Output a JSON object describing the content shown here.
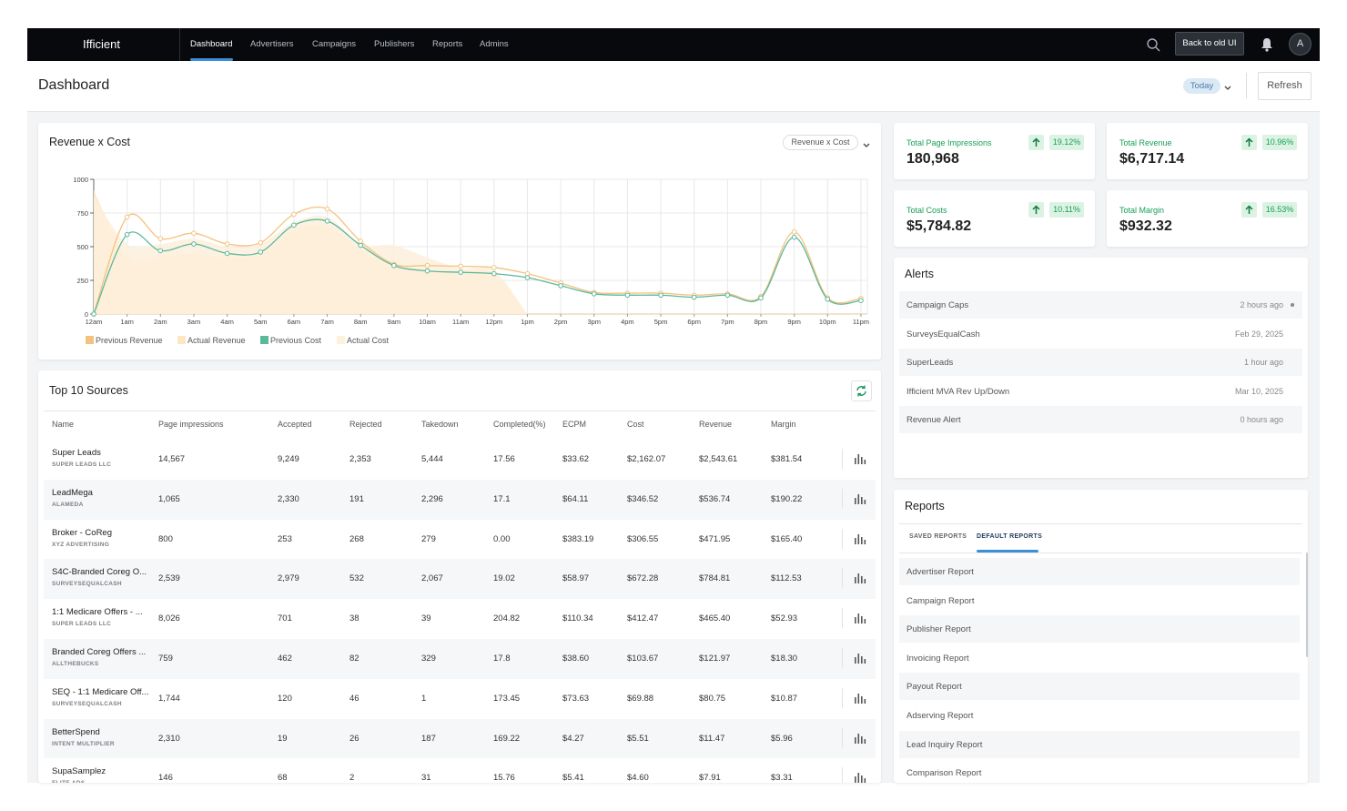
{
  "nav": {
    "brand": "Ifficient",
    "items": [
      "Dashboard",
      "Advertisers",
      "Campaigns",
      "Publishers",
      "Reports",
      "Admins"
    ],
    "back": "Back to old UI",
    "avatar": "A"
  },
  "header": {
    "title": "Dashboard",
    "range": "Today",
    "refresh": "Refresh"
  },
  "chart_data": {
    "type": "line",
    "title": "Revenue x Cost",
    "selector": "Revenue x Cost",
    "categories": [
      "12am",
      "1am",
      "2am",
      "3am",
      "4am",
      "5am",
      "6am",
      "7am",
      "8am",
      "9am",
      "10am",
      "11am",
      "12pm",
      "1pm",
      "2pm",
      "3pm",
      "4pm",
      "5pm",
      "6pm",
      "7pm",
      "8pm",
      "9pm",
      "10pm",
      "11pm"
    ],
    "ylim": [
      0,
      1000
    ],
    "yticks": [
      0,
      250,
      500,
      750,
      1000
    ],
    "grid": true,
    "series": [
      {
        "name": "Previous Revenue",
        "color": "#f5c27e",
        "style": "line",
        "values": [
          0,
          720,
          560,
          600,
          520,
          530,
          740,
          780,
          540,
          370,
          360,
          355,
          345,
          300,
          230,
          160,
          155,
          155,
          140,
          150,
          130,
          610,
          120,
          115
        ]
      },
      {
        "name": "Actual Revenue",
        "color": "#fde6c4",
        "style": "area",
        "values": [
          920,
          430,
          430,
          450,
          420,
          450,
          620,
          650,
          480,
          350,
          320,
          310,
          300,
          0,
          null,
          null,
          null,
          null,
          null,
          null,
          null,
          null,
          null,
          null
        ]
      },
      {
        "name": "Previous Cost",
        "color": "#5cb89a",
        "style": "line",
        "values": [
          0,
          590,
          470,
          520,
          450,
          460,
          660,
          690,
          510,
          360,
          320,
          310,
          300,
          270,
          210,
          150,
          140,
          140,
          125,
          140,
          120,
          570,
          110,
          100
        ]
      },
      {
        "name": "Actual Cost",
        "color": "#fdf0dc",
        "style": "area",
        "values": [
          880,
          520,
          520,
          560,
          500,
          520,
          680,
          720,
          520,
          510,
          420,
          340,
          320,
          0,
          null,
          null,
          null,
          null,
          null,
          null,
          null,
          null,
          null,
          null
        ]
      }
    ]
  },
  "stats": [
    {
      "label": "Total Page Impressions",
      "value": "180,968",
      "change": "19.12%"
    },
    {
      "label": "Total Revenue",
      "value": "$6,717.14",
      "change": "10.96%"
    },
    {
      "label": "Total Costs",
      "value": "$5,784.82",
      "change": "10.11%"
    },
    {
      "label": "Total Margin",
      "value": "$932.32",
      "change": "16.53%"
    }
  ],
  "alerts": {
    "title": "Alerts",
    "items": [
      {
        "name": "Campaign Caps",
        "time": "2 hours ago"
      },
      {
        "name": "SurveysEqualCash",
        "time": "Feb 29, 2025"
      },
      {
        "name": "SuperLeads",
        "time": "1 hour ago"
      },
      {
        "name": "Ifficient MVA Rev Up/Down",
        "time": "Mar 10, 2025"
      },
      {
        "name": "Revenue Alert",
        "time": "0 hours ago"
      }
    ]
  },
  "reports": {
    "title": "Reports",
    "tabs": [
      "SAVED REPORTS",
      "DEFAULT REPORTS"
    ],
    "items": [
      "Advertiser Report",
      "Campaign Report",
      "Publisher Report",
      "Invoicing Report",
      "Payout Report",
      "Adserving Report",
      "Lead Inquiry Report",
      "Comparison Report"
    ]
  },
  "sources": {
    "title": "Top 10 Sources",
    "columns": [
      "Name",
      "Page impressions",
      "Accepted",
      "Rejected",
      "Takedown",
      "Completed(%)",
      "ECPM",
      "Cost",
      "Revenue",
      "Margin"
    ],
    "rows": [
      {
        "name": "Super Leads",
        "company": "SUPER LEADS LLC",
        "cells": [
          "14,567",
          "9,249",
          "2,353",
          "5,444",
          "17.56",
          "$33.62",
          "$2,162.07",
          "$2,543.61",
          "$381.54"
        ]
      },
      {
        "name": "LeadMega",
        "company": "ALAMEDA",
        "cells": [
          "1,065",
          "2,330",
          "191",
          "2,296",
          "17.1",
          "$64.11",
          "$346.52",
          "$536.74",
          "$190.22"
        ]
      },
      {
        "name": "Broker - CoReg",
        "company": "XYZ ADVERTISING",
        "cells": [
          "800",
          "253",
          "268",
          "279",
          "0.00",
          "$383.19",
          "$306.55",
          "$471.95",
          "$165.40"
        ]
      },
      {
        "name": "S4C-Branded Coreg O...",
        "company": "SURVEYSEQUALCASH",
        "cells": [
          "2,539",
          "2,979",
          "532",
          "2,067",
          "19.02",
          "$58.97",
          "$672.28",
          "$784.81",
          "$112.53"
        ]
      },
      {
        "name": "1:1 Medicare Offers - ...",
        "company": "SUPER LEADS LLC",
        "cells": [
          "8,026",
          "701",
          "38",
          "39",
          "204.82",
          "$110.34",
          "$412.47",
          "$465.40",
          "$52.93"
        ]
      },
      {
        "name": "Branded Coreg Offers ...",
        "company": "ALLTHEBUCKS",
        "cells": [
          "759",
          "462",
          "82",
          "329",
          "17.8",
          "$38.60",
          "$103.67",
          "$121.97",
          "$18.30"
        ]
      },
      {
        "name": "SEQ - 1:1 Medicare Off...",
        "company": "SURVEYSEQUALCASH",
        "cells": [
          "1,744",
          "120",
          "46",
          "1",
          "173.45",
          "$73.63",
          "$69.88",
          "$80.75",
          "$10.87"
        ]
      },
      {
        "name": "BetterSpend",
        "company": "INTENT MULTIPLIER",
        "cells": [
          "2,310",
          "19",
          "26",
          "187",
          "169.22",
          "$4.27",
          "$5.51",
          "$11.47",
          "$5.96"
        ]
      },
      {
        "name": "SupaSamplez",
        "company": "ELITE ADS",
        "cells": [
          "146",
          "68",
          "2",
          "31",
          "15.76",
          "$5.41",
          "$4.60",
          "$7.91",
          "$3.31"
        ]
      }
    ]
  }
}
